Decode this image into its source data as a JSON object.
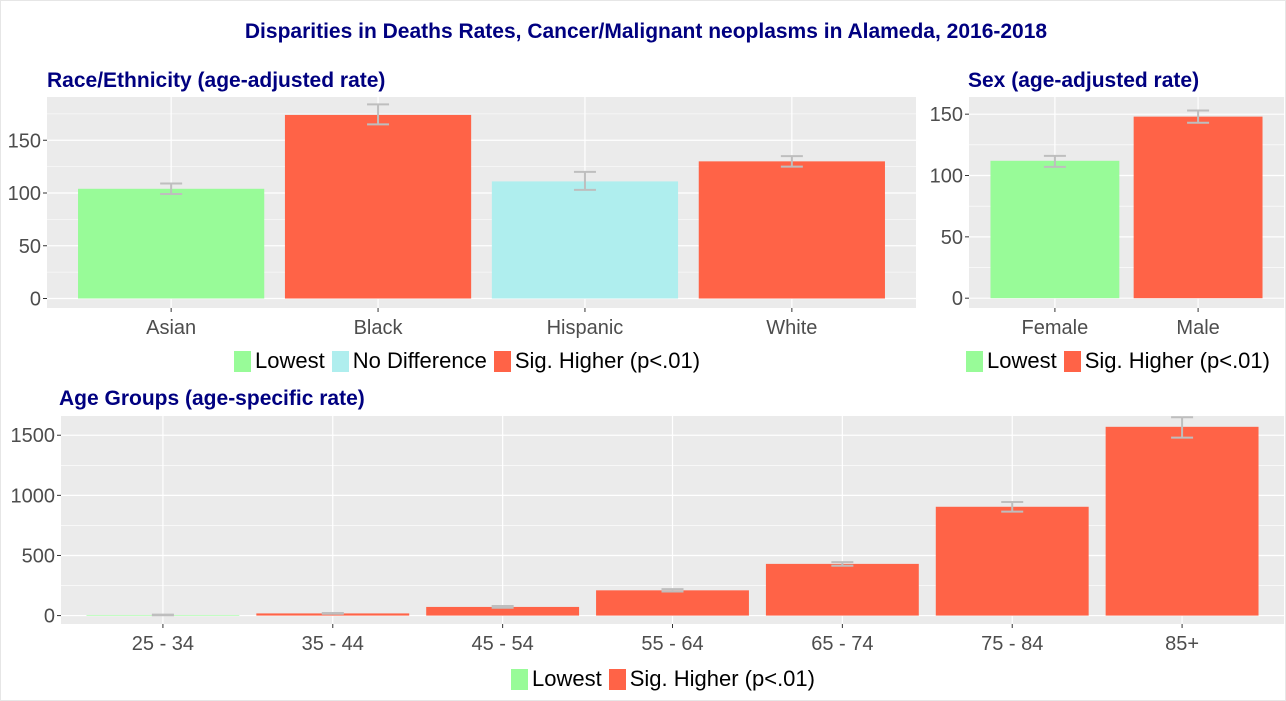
{
  "title": "Disparities in Deaths Rates, Cancer/Malignant neoplasms in Alameda, 2016-2018",
  "colors": {
    "Lowest": "#98FB98",
    "No Difference": "#AFEEEE",
    "Sig. Higher (p<.01)": "#FF6347",
    "panel_bg": "#EBEBEB",
    "gridline": "#FFFFFF",
    "errorbar": "#BEBEBE",
    "title": "#000080"
  },
  "chart_data": [
    {
      "id": "race",
      "type": "bar",
      "title": "Race/Ethnicity (age-adjusted rate)",
      "categories": [
        "Asian",
        "Black",
        "Hispanic",
        "White"
      ],
      "values": [
        104,
        174,
        111,
        130
      ],
      "error_low": [
        99,
        165,
        103,
        125
      ],
      "error_high": [
        109,
        184,
        120,
        135
      ],
      "groups": [
        "Lowest",
        "Sig. Higher (p<.01)",
        "No Difference",
        "Sig. Higher (p<.01)"
      ],
      "yticks": [
        0,
        50,
        100,
        150
      ],
      "ylim": [
        -9,
        191
      ],
      "legend": [
        "Lowest",
        "No Difference",
        "Sig. Higher (p<.01)"
      ],
      "grid": true
    },
    {
      "id": "sex",
      "type": "bar",
      "title": "Sex (age-adjusted rate)",
      "categories": [
        "Female",
        "Male"
      ],
      "values": [
        112,
        148
      ],
      "error_low": [
        107,
        143
      ],
      "error_high": [
        116,
        153
      ],
      "groups": [
        "Lowest",
        "Sig. Higher (p<.01)"
      ],
      "yticks": [
        0,
        50,
        100,
        150
      ],
      "ylim": [
        -8,
        164
      ],
      "legend": [
        "Lowest",
        "Sig. Higher (p<.01)"
      ],
      "grid": true
    },
    {
      "id": "age",
      "type": "bar",
      "title": "Age Groups (age-specific rate)",
      "categories": [
        "25 - 34",
        "35 - 44",
        "45 - 54",
        "55 - 64",
        "65 - 74",
        "75 - 84",
        "85+"
      ],
      "values": [
        5,
        18,
        72,
        210,
        430,
        905,
        1570
      ],
      "error_low": [
        3,
        15,
        65,
        200,
        415,
        865,
        1480
      ],
      "error_high": [
        8,
        22,
        80,
        220,
        445,
        945,
        1650
      ],
      "groups": [
        "Lowest",
        "Sig. Higher (p<.01)",
        "Sig. Higher (p<.01)",
        "Sig. Higher (p<.01)",
        "Sig. Higher (p<.01)",
        "Sig. Higher (p<.01)",
        "Sig. Higher (p<.01)"
      ],
      "yticks": [
        0,
        500,
        1000,
        1500
      ],
      "ylim": [
        -70,
        1660
      ],
      "legend": [
        "Lowest",
        "Sig. Higher (p<.01)"
      ],
      "grid": true
    }
  ]
}
